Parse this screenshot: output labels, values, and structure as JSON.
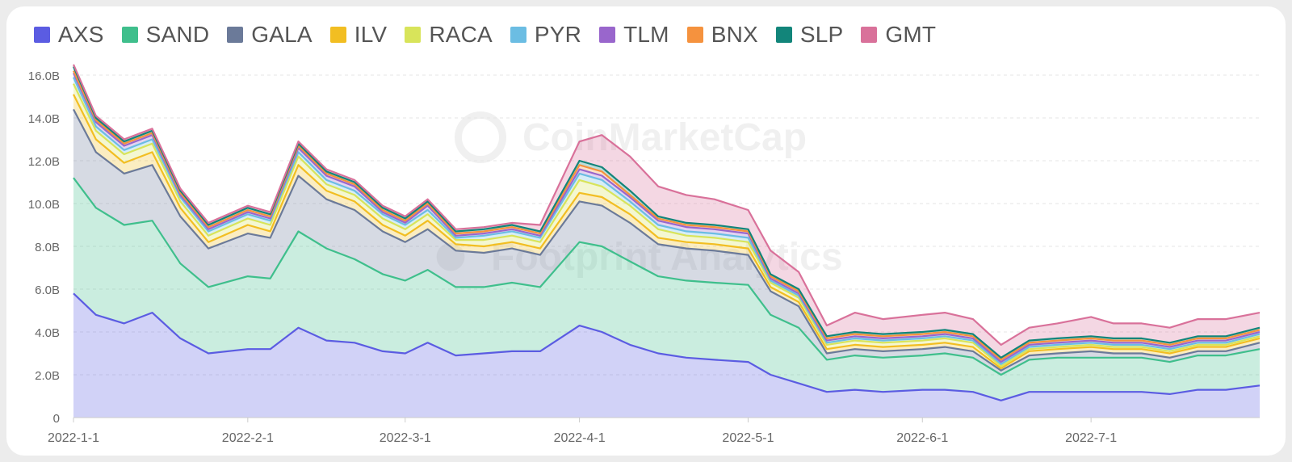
{
  "chart_data": {
    "type": "area",
    "stacked": true,
    "x": [
      "2022-01-01",
      "2022-01-05",
      "2022-01-10",
      "2022-01-15",
      "2022-01-20",
      "2022-01-25",
      "2022-02-01",
      "2022-02-05",
      "2022-02-10",
      "2022-02-15",
      "2022-02-20",
      "2022-02-25",
      "2022-03-01",
      "2022-03-05",
      "2022-03-10",
      "2022-03-15",
      "2022-03-20",
      "2022-03-25",
      "2022-04-01",
      "2022-04-05",
      "2022-04-10",
      "2022-04-15",
      "2022-04-20",
      "2022-04-25",
      "2022-05-01",
      "2022-05-05",
      "2022-05-10",
      "2022-05-15",
      "2022-05-20",
      "2022-05-25",
      "2022-06-01",
      "2022-06-05",
      "2022-06-10",
      "2022-06-15",
      "2022-06-20",
      "2022-06-25",
      "2022-07-01",
      "2022-07-05",
      "2022-07-10",
      "2022-07-15",
      "2022-07-20",
      "2022-07-25",
      "2022-07-31"
    ],
    "x_ticks": [
      {
        "date": "2022-01-01",
        "label": "2022-1-1"
      },
      {
        "date": "2022-02-01",
        "label": "2022-2-1"
      },
      {
        "date": "2022-03-01",
        "label": "2022-3-1"
      },
      {
        "date": "2022-04-01",
        "label": "2022-4-1"
      },
      {
        "date": "2022-05-01",
        "label": "2022-5-1"
      },
      {
        "date": "2022-06-01",
        "label": "2022-6-1"
      },
      {
        "date": "2022-07-01",
        "label": "2022-7-1"
      }
    ],
    "y_ticks": [
      "0",
      "2.0B",
      "4.0B",
      "6.0B",
      "8.0B",
      "10.0B",
      "12.0B",
      "14.0B",
      "16.0B"
    ],
    "ylim": [
      0,
      16000000000
    ],
    "grid": true,
    "legend_position": "top-left",
    "series": [
      {
        "name": "AXS",
        "color": "#5b5ce2",
        "values": [
          5.8,
          4.8,
          4.4,
          4.9,
          3.7,
          3.0,
          3.2,
          3.2,
          4.2,
          3.6,
          3.5,
          3.1,
          3.0,
          3.5,
          2.9,
          3.0,
          3.1,
          3.1,
          4.3,
          4.0,
          3.4,
          3.0,
          2.8,
          2.7,
          2.6,
          2.0,
          1.6,
          1.2,
          1.3,
          1.2,
          1.3,
          1.3,
          1.2,
          0.8,
          1.2,
          1.2,
          1.2,
          1.2,
          1.2,
          1.1,
          1.3,
          1.3,
          1.5
        ]
      },
      {
        "name": "SAND",
        "color": "#3fbf8c",
        "values": [
          5.4,
          5.0,
          4.6,
          4.3,
          3.5,
          3.1,
          3.4,
          3.3,
          4.5,
          4.3,
          3.9,
          3.6,
          3.4,
          3.4,
          3.2,
          3.1,
          3.2,
          3.0,
          3.9,
          4.0,
          3.9,
          3.6,
          3.6,
          3.6,
          3.6,
          2.8,
          2.6,
          1.5,
          1.6,
          1.6,
          1.6,
          1.7,
          1.6,
          1.2,
          1.5,
          1.6,
          1.6,
          1.6,
          1.6,
          1.5,
          1.6,
          1.6,
          1.7
        ]
      },
      {
        "name": "GALA",
        "color": "#6b7a99",
        "values": [
          3.2,
          2.6,
          2.4,
          2.6,
          2.2,
          1.8,
          2.0,
          1.9,
          2.6,
          2.3,
          2.3,
          2.0,
          1.8,
          1.9,
          1.7,
          1.6,
          1.6,
          1.5,
          1.9,
          1.9,
          1.8,
          1.5,
          1.5,
          1.5,
          1.4,
          1.1,
          1.0,
          0.3,
          0.3,
          0.3,
          0.3,
          0.3,
          0.3,
          0.2,
          0.2,
          0.2,
          0.3,
          0.2,
          0.2,
          0.2,
          0.2,
          0.2,
          0.3
        ]
      },
      {
        "name": "ILV",
        "color": "#f2be22",
        "values": [
          0.7,
          0.6,
          0.5,
          0.6,
          0.4,
          0.3,
          0.4,
          0.3,
          0.5,
          0.4,
          0.4,
          0.3,
          0.3,
          0.4,
          0.3,
          0.3,
          0.3,
          0.3,
          0.4,
          0.4,
          0.4,
          0.3,
          0.3,
          0.3,
          0.3,
          0.2,
          0.2,
          0.2,
          0.2,
          0.2,
          0.2,
          0.2,
          0.2,
          0.1,
          0.2,
          0.2,
          0.2,
          0.2,
          0.2,
          0.2,
          0.2,
          0.2,
          0.2
        ]
      },
      {
        "name": "RACA",
        "color": "#d8e45a",
        "values": [
          0.5,
          0.4,
          0.4,
          0.4,
          0.3,
          0.3,
          0.3,
          0.3,
          0.4,
          0.3,
          0.3,
          0.3,
          0.3,
          0.3,
          0.2,
          0.3,
          0.3,
          0.3,
          0.6,
          0.5,
          0.4,
          0.4,
          0.3,
          0.3,
          0.3,
          0.2,
          0.2,
          0.2,
          0.2,
          0.2,
          0.2,
          0.2,
          0.2,
          0.1,
          0.1,
          0.1,
          0.1,
          0.1,
          0.1,
          0.1,
          0.1,
          0.1,
          0.1
        ]
      },
      {
        "name": "PYR",
        "color": "#6bbde3",
        "values": [
          0.3,
          0.2,
          0.2,
          0.2,
          0.2,
          0.2,
          0.2,
          0.2,
          0.2,
          0.2,
          0.2,
          0.2,
          0.2,
          0.2,
          0.1,
          0.2,
          0.2,
          0.2,
          0.3,
          0.3,
          0.2,
          0.2,
          0.2,
          0.2,
          0.2,
          0.1,
          0.1,
          0.1,
          0.1,
          0.1,
          0.1,
          0.1,
          0.1,
          0.1,
          0.1,
          0.1,
          0.1,
          0.1,
          0.1,
          0.1,
          0.1,
          0.1,
          0.1
        ]
      },
      {
        "name": "TLM",
        "color": "#9966cc",
        "values": [
          0.2,
          0.2,
          0.2,
          0.2,
          0.1,
          0.1,
          0.1,
          0.1,
          0.2,
          0.2,
          0.2,
          0.1,
          0.1,
          0.2,
          0.1,
          0.1,
          0.1,
          0.1,
          0.2,
          0.2,
          0.2,
          0.2,
          0.2,
          0.2,
          0.2,
          0.1,
          0.1,
          0.1,
          0.1,
          0.1,
          0.1,
          0.1,
          0.1,
          0.1,
          0.1,
          0.1,
          0.1,
          0.1,
          0.1,
          0.1,
          0.1,
          0.1,
          0.1
        ]
      },
      {
        "name": "BNX",
        "color": "#f5923e",
        "values": [
          0.1,
          0.1,
          0.1,
          0.1,
          0.1,
          0.1,
          0.1,
          0.1,
          0.1,
          0.1,
          0.1,
          0.1,
          0.1,
          0.1,
          0.1,
          0.1,
          0.1,
          0.1,
          0.2,
          0.2,
          0.1,
          0.1,
          0.1,
          0.1,
          0.1,
          0.1,
          0.1,
          0.1,
          0.1,
          0.1,
          0.1,
          0.1,
          0.1,
          0.1,
          0.1,
          0.1,
          0.1,
          0.1,
          0.1,
          0.1,
          0.1,
          0.1,
          0.1
        ]
      },
      {
        "name": "SLP",
        "color": "#12857a",
        "values": [
          0.2,
          0.1,
          0.1,
          0.1,
          0.1,
          0.1,
          0.1,
          0.1,
          0.1,
          0.1,
          0.1,
          0.1,
          0.1,
          0.1,
          0.1,
          0.1,
          0.1,
          0.1,
          0.2,
          0.2,
          0.2,
          0.1,
          0.1,
          0.1,
          0.1,
          0.1,
          0.1,
          0.1,
          0.1,
          0.1,
          0.1,
          0.1,
          0.1,
          0.1,
          0.1,
          0.1,
          0.1,
          0.1,
          0.1,
          0.1,
          0.1,
          0.1,
          0.1
        ]
      },
      {
        "name": "GMT",
        "color": "#d9719a",
        "values": [
          0.1,
          0.1,
          0.1,
          0.1,
          0.1,
          0.1,
          0.1,
          0.1,
          0.1,
          0.1,
          0.1,
          0.1,
          0.1,
          0.1,
          0.1,
          0.1,
          0.1,
          0.3,
          0.9,
          1.5,
          1.6,
          1.4,
          1.3,
          1.2,
          0.9,
          1.1,
          0.8,
          0.5,
          0.9,
          0.7,
          0.8,
          0.8,
          0.7,
          0.6,
          0.6,
          0.7,
          0.9,
          0.7,
          0.7,
          0.7,
          0.8,
          0.8,
          0.7
        ]
      }
    ],
    "value_unit_multiplier": 1000000000
  },
  "watermarks": [
    "CoinMarketCap",
    "Footprint Analytics"
  ]
}
